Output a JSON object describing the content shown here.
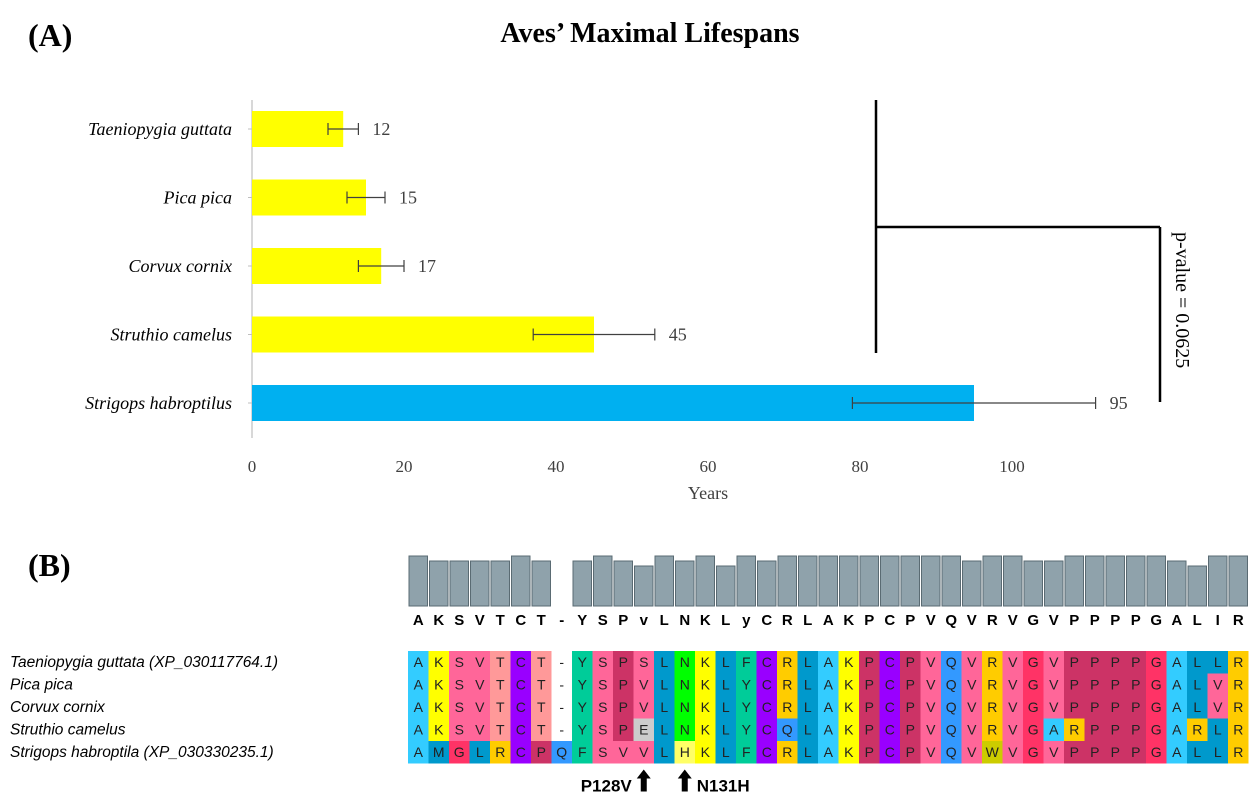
{
  "panel_a": {
    "label": "(A)",
    "title": "Aves’ Maximal Lifespans",
    "sig_text": "p-value = 0.0625"
  },
  "panel_b": {
    "label": "(B)",
    "consensus": [
      "A",
      "K",
      "S",
      "V",
      "T",
      "C",
      "T",
      "-",
      "Y",
      "S",
      "P",
      "v",
      "L",
      "N",
      "K",
      "L",
      "y",
      "C",
      "R",
      "L",
      "A",
      "K",
      "P",
      "C",
      "P",
      "V",
      "Q",
      "V",
      "R",
      "V",
      "G",
      "V",
      "P",
      "P",
      "P",
      "P",
      "G",
      "A",
      "L",
      "I",
      "R"
    ],
    "conservation": [
      10,
      9,
      9,
      9,
      9,
      10,
      9,
      0,
      9,
      10,
      9,
      8,
      10,
      9,
      10,
      8,
      10,
      9,
      10,
      10,
      10,
      10,
      10,
      10,
      10,
      10,
      10,
      9,
      10,
      10,
      9,
      9,
      10,
      10,
      10,
      10,
      10,
      9,
      8,
      10,
      10
    ],
    "sequences": [
      {
        "name": "Taeniopygia guttata (XP_030117764.1)",
        "residues": [
          "A",
          "K",
          "S",
          "V",
          "T",
          "C",
          "T",
          "-",
          "Y",
          "S",
          "P",
          "S",
          "L",
          "N",
          "K",
          "L",
          "F",
          "C",
          "R",
          "L",
          "A",
          "K",
          "P",
          "C",
          "P",
          "V",
          "Q",
          "V",
          "R",
          "V",
          "G",
          "V",
          "P",
          "P",
          "P",
          "P",
          "G",
          "A",
          "L",
          "L",
          "R"
        ]
      },
      {
        "name": "Pica pica",
        "residues": [
          "A",
          "K",
          "S",
          "V",
          "T",
          "C",
          "T",
          "-",
          "Y",
          "S",
          "P",
          "V",
          "L",
          "N",
          "K",
          "L",
          "Y",
          "C",
          "R",
          "L",
          "A",
          "K",
          "P",
          "C",
          "P",
          "V",
          "Q",
          "V",
          "R",
          "V",
          "G",
          "V",
          "P",
          "P",
          "P",
          "P",
          "G",
          "A",
          "L",
          "V",
          "R"
        ]
      },
      {
        "name": "Corvux cornix",
        "residues": [
          "A",
          "K",
          "S",
          "V",
          "T",
          "C",
          "T",
          "-",
          "Y",
          "S",
          "P",
          "V",
          "L",
          "N",
          "K",
          "L",
          "Y",
          "C",
          "R",
          "L",
          "A",
          "K",
          "P",
          "C",
          "P",
          "V",
          "Q",
          "V",
          "R",
          "V",
          "G",
          "V",
          "P",
          "P",
          "P",
          "P",
          "G",
          "A",
          "L",
          "V",
          "R"
        ]
      },
      {
        "name": "Struthio camelus",
        "residues": [
          "A",
          "K",
          "S",
          "V",
          "T",
          "C",
          "T",
          "-",
          "Y",
          "S",
          "P",
          "E",
          "L",
          "N",
          "K",
          "L",
          "Y",
          "C",
          "Q",
          "L",
          "A",
          "K",
          "P",
          "C",
          "P",
          "V",
          "Q",
          "V",
          "R",
          "V",
          "G",
          "A",
          "R",
          "P",
          "P",
          "P",
          "G",
          "A",
          "R",
          "L",
          "R"
        ]
      },
      {
        "name": "Strigops habroptila (XP_030330235.1)",
        "residues": [
          "A",
          "M",
          "G",
          "L",
          "R",
          "C",
          "P",
          "Q",
          "F",
          "S",
          "V",
          "V",
          "L",
          "H",
          "K",
          "L",
          "F",
          "C",
          "R",
          "L",
          "A",
          "K",
          "P",
          "C",
          "P",
          "V",
          "Q",
          "V",
          "W",
          "V",
          "G",
          "V",
          "P",
          "P",
          "P",
          "P",
          "G",
          "A",
          "L",
          "L",
          "R"
        ]
      }
    ],
    "mutations": [
      {
        "label": "P128V",
        "col": 11
      },
      {
        "label": "N131H",
        "col": 13
      }
    ],
    "residue_colors": {
      "A": "#33ccff",
      "K": "#ffff00",
      "S": "#ff6699",
      "V": "#ff6699",
      "T": "#ff9999",
      "C": "#9900ff",
      "-": "#ffffff",
      "Y": "#00cc99",
      "P": "#cc3366",
      "L": "#0099cc",
      "N": "#00ff00",
      "F": "#00cc99",
      "R": "#ffcc00",
      "G": "#ff3366",
      "Q": "#3399ff",
      "E": "#cccccc",
      "M": "#0099cc",
      "H": "#ffff66",
      "W": "#cccc00",
      "I": "#0099cc"
    }
  },
  "chart_data": {
    "type": "bar",
    "orientation": "horizontal",
    "title": "Aves’ Maximal Lifespans",
    "xlabel": "Years",
    "xlim": [
      0,
      120
    ],
    "xticks": [
      0,
      20,
      40,
      60,
      80,
      100
    ],
    "categories": [
      "Taeniopygia guttata",
      "Pica pica",
      "Corvux cornix",
      "Struthio camelus",
      "Strigops habroptilus"
    ],
    "values": [
      12,
      15,
      17,
      45,
      95
    ],
    "error_low": [
      10,
      12.5,
      14,
      37,
      79
    ],
    "error_high": [
      14,
      17.5,
      20,
      53,
      111
    ],
    "bar_colors": [
      "#ffff00",
      "#ffff00",
      "#ffff00",
      "#ffff00",
      "#00b0f0"
    ],
    "grid": false,
    "annotation": "p-value = 0.0625"
  }
}
